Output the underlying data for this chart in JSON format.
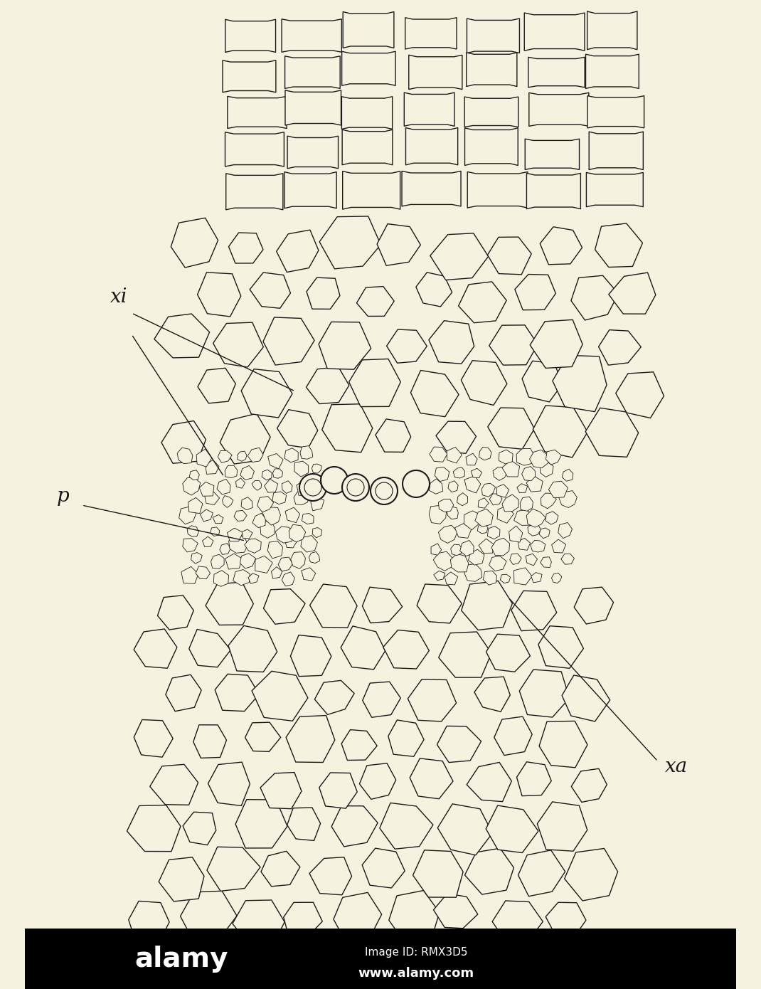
{
  "bg_color": "#f5f2e0",
  "cell_color": "#f5f2e0",
  "cell_edge_color": "#1a1a1a",
  "fig_width": 10.7,
  "fig_height": 13.9,
  "dpi": 100,
  "watermark_bg": "#000000",
  "watermark_text1": "Image ID: RMX3D5",
  "watermark_text2": "www.alamy.com",
  "label_xi": "xi",
  "label_p": "p",
  "label_xa": "xa",
  "label_fontsize": 20,
  "label_fontstyle": "italic"
}
